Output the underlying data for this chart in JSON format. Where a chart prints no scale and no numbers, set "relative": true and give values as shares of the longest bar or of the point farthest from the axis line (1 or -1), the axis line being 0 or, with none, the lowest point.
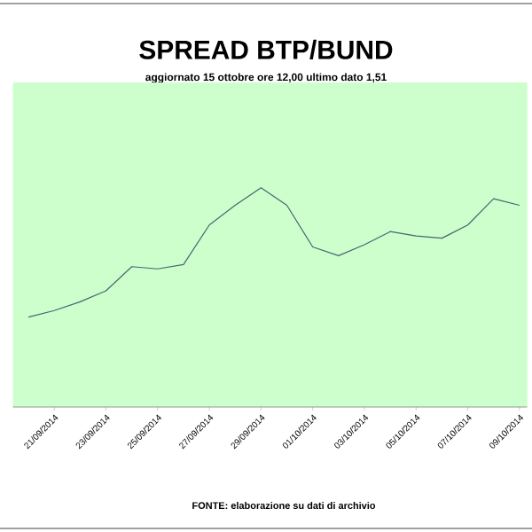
{
  "chart_data": {
    "type": "line",
    "title": "SPREAD BTP/BUND",
    "subtitle": "aggiornato 15 ottobre ore 12,00 ultimo dato 1,51",
    "annotations": [
      "FONTE: elaborazione su dati di archivio"
    ],
    "relative": true,
    "categories": [
      null,
      "21/09/2014",
      null,
      "23/09/2014",
      null,
      "25/09/2014",
      null,
      "27/09/2014",
      null,
      "29/09/2014",
      null,
      "01/10/2014",
      null,
      "03/10/2014",
      null,
      "05/10/2014",
      null,
      "07/10/2014",
      null,
      "09/10/2014"
    ],
    "series": [
      {
        "color": "#4a6470",
        "values": [
          0.41,
          0.44,
          0.48,
          0.53,
          0.64,
          0.63,
          0.65,
          0.83,
          0.92,
          1,
          0.92,
          0.73,
          0.69,
          0.74,
          0.8,
          0.78,
          0.77,
          0.83,
          0.95,
          0.92
        ]
      }
    ],
    "marker": "none"
  }
}
